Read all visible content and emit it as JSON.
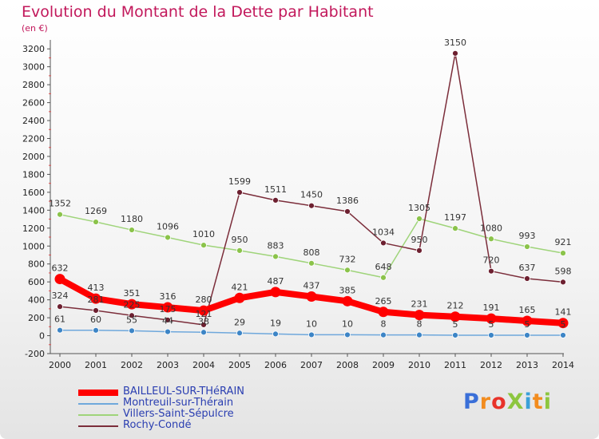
{
  "title": "Evolution du Montant de la Dette par Habitant",
  "unit": "(en €)",
  "logo": {
    "text": "ProXiti",
    "colors": [
      "#3a6fd8",
      "#f28c1e",
      "#e8332a",
      "#8dc63f",
      "#3aa0d8",
      "#f28c1e",
      "#8dc63f"
    ]
  },
  "chart_data": {
    "type": "line",
    "x": [
      "2000",
      "2001",
      "2002",
      "2003",
      "2004",
      "2005",
      "2006",
      "2007",
      "2008",
      "2009",
      "2010",
      "2011",
      "2012",
      "2013",
      "2014"
    ],
    "ylim": [
      -200,
      3300
    ],
    "yticks": [
      -200,
      0,
      200,
      400,
      600,
      800,
      1000,
      1200,
      1400,
      1600,
      1800,
      2000,
      2200,
      2400,
      2600,
      2800,
      3000,
      3200
    ],
    "grid": false,
    "legend": "bottom-left",
    "series": [
      {
        "name": "BAILLEUL-SUR-THéRAIN",
        "color": "#ff0000",
        "marker": "#ff0000",
        "values": [
          632,
          413,
          351,
          316,
          280,
          421,
          487,
          437,
          385,
          265,
          231,
          212,
          191,
          165,
          141
        ]
      },
      {
        "name": "Montreuil-sur-Thérain",
        "color": "#6fa8dc",
        "marker": "#3d85c6",
        "values": [
          61,
          60,
          55,
          44,
          38,
          29,
          19,
          10,
          10,
          8,
          8,
          5,
          5,
          5,
          5
        ]
      },
      {
        "name": "Villers-Saint-Sépulcre",
        "color": "#9fd47a",
        "marker": "#8bc34a",
        "values": [
          1352,
          1269,
          1180,
          1096,
          1010,
          950,
          883,
          808,
          732,
          648,
          1305,
          1197,
          1080,
          993,
          921
        ]
      },
      {
        "name": "Rochy-Condé",
        "color": "#7b2d3a",
        "marker": "#6d2030",
        "values": [
          324,
          281,
          225,
          175,
          121,
          1599,
          1511,
          1450,
          1386,
          1034,
          950,
          3150,
          720,
          637,
          598
        ]
      }
    ]
  }
}
